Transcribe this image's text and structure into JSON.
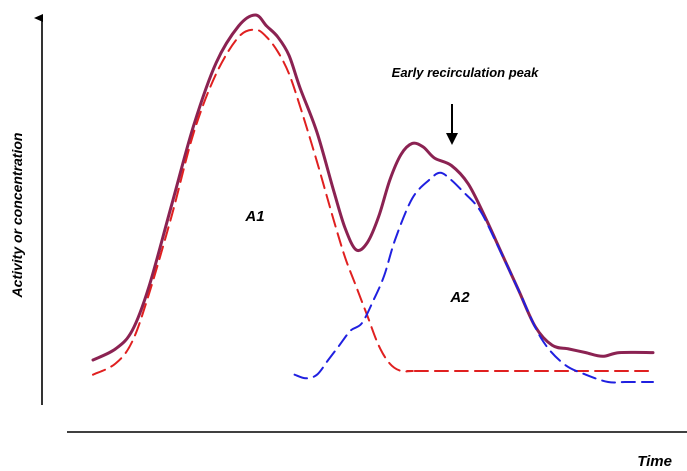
{
  "chart_data": {
    "type": "line",
    "title": "",
    "xlabel": "Time",
    "ylabel": "Activity or concentration",
    "xlim": [
      0,
      100
    ],
    "ylim": [
      0,
      100
    ],
    "grid": false,
    "legend": "none",
    "annotation": "Early recirculation peak",
    "area_labels": [
      "A1",
      "A2"
    ],
    "series": [
      {
        "color": "#8B2252",
        "style": "solid",
        "x": [
          0,
          4,
          7,
          10,
          14,
          18,
          22,
          26,
          29,
          31,
          33,
          35,
          37,
          40,
          43,
          45,
          47,
          49,
          51,
          53,
          55,
          57,
          59,
          61,
          64,
          67,
          70,
          73,
          76,
          79,
          82,
          85,
          88,
          91,
          94,
          100
        ],
        "y": [
          6,
          9,
          14,
          26,
          48,
          70,
          87,
          97,
          100,
          97,
          94,
          89,
          80,
          68,
          52,
          42,
          36,
          38,
          45,
          55,
          62,
          65,
          64,
          61,
          59,
          54,
          45,
          35,
          25,
          15,
          10,
          9,
          8,
          7,
          8,
          8
        ]
      },
      {
        "color": "#E02020",
        "style": "dashed",
        "x": [
          0,
          4,
          7,
          10,
          14,
          18,
          22,
          26,
          29,
          31,
          33,
          35,
          37,
          40,
          43,
          45,
          47,
          49,
          51,
          53,
          55,
          57,
          60,
          100
        ],
        "y": [
          2,
          5,
          11,
          24,
          45,
          68,
          84,
          94,
          96,
          94,
          90,
          84,
          75,
          60,
          44,
          34,
          26,
          18,
          10,
          5,
          3,
          3,
          3,
          3
        ]
      },
      {
        "color": "#2020E0",
        "style": "dashed",
        "x": [
          36,
          38,
          40,
          42,
          44,
          46,
          48,
          50,
          52,
          54,
          57,
          60,
          62,
          64,
          66,
          69,
          72,
          76,
          80,
          84,
          88,
          92,
          95,
          100
        ],
        "y": [
          2,
          1,
          2,
          6,
          10,
          14,
          16,
          22,
          29,
          39,
          50,
          55,
          57,
          55,
          52,
          47,
          38,
          25,
          12,
          5,
          2,
          0,
          0,
          0
        ]
      }
    ]
  }
}
